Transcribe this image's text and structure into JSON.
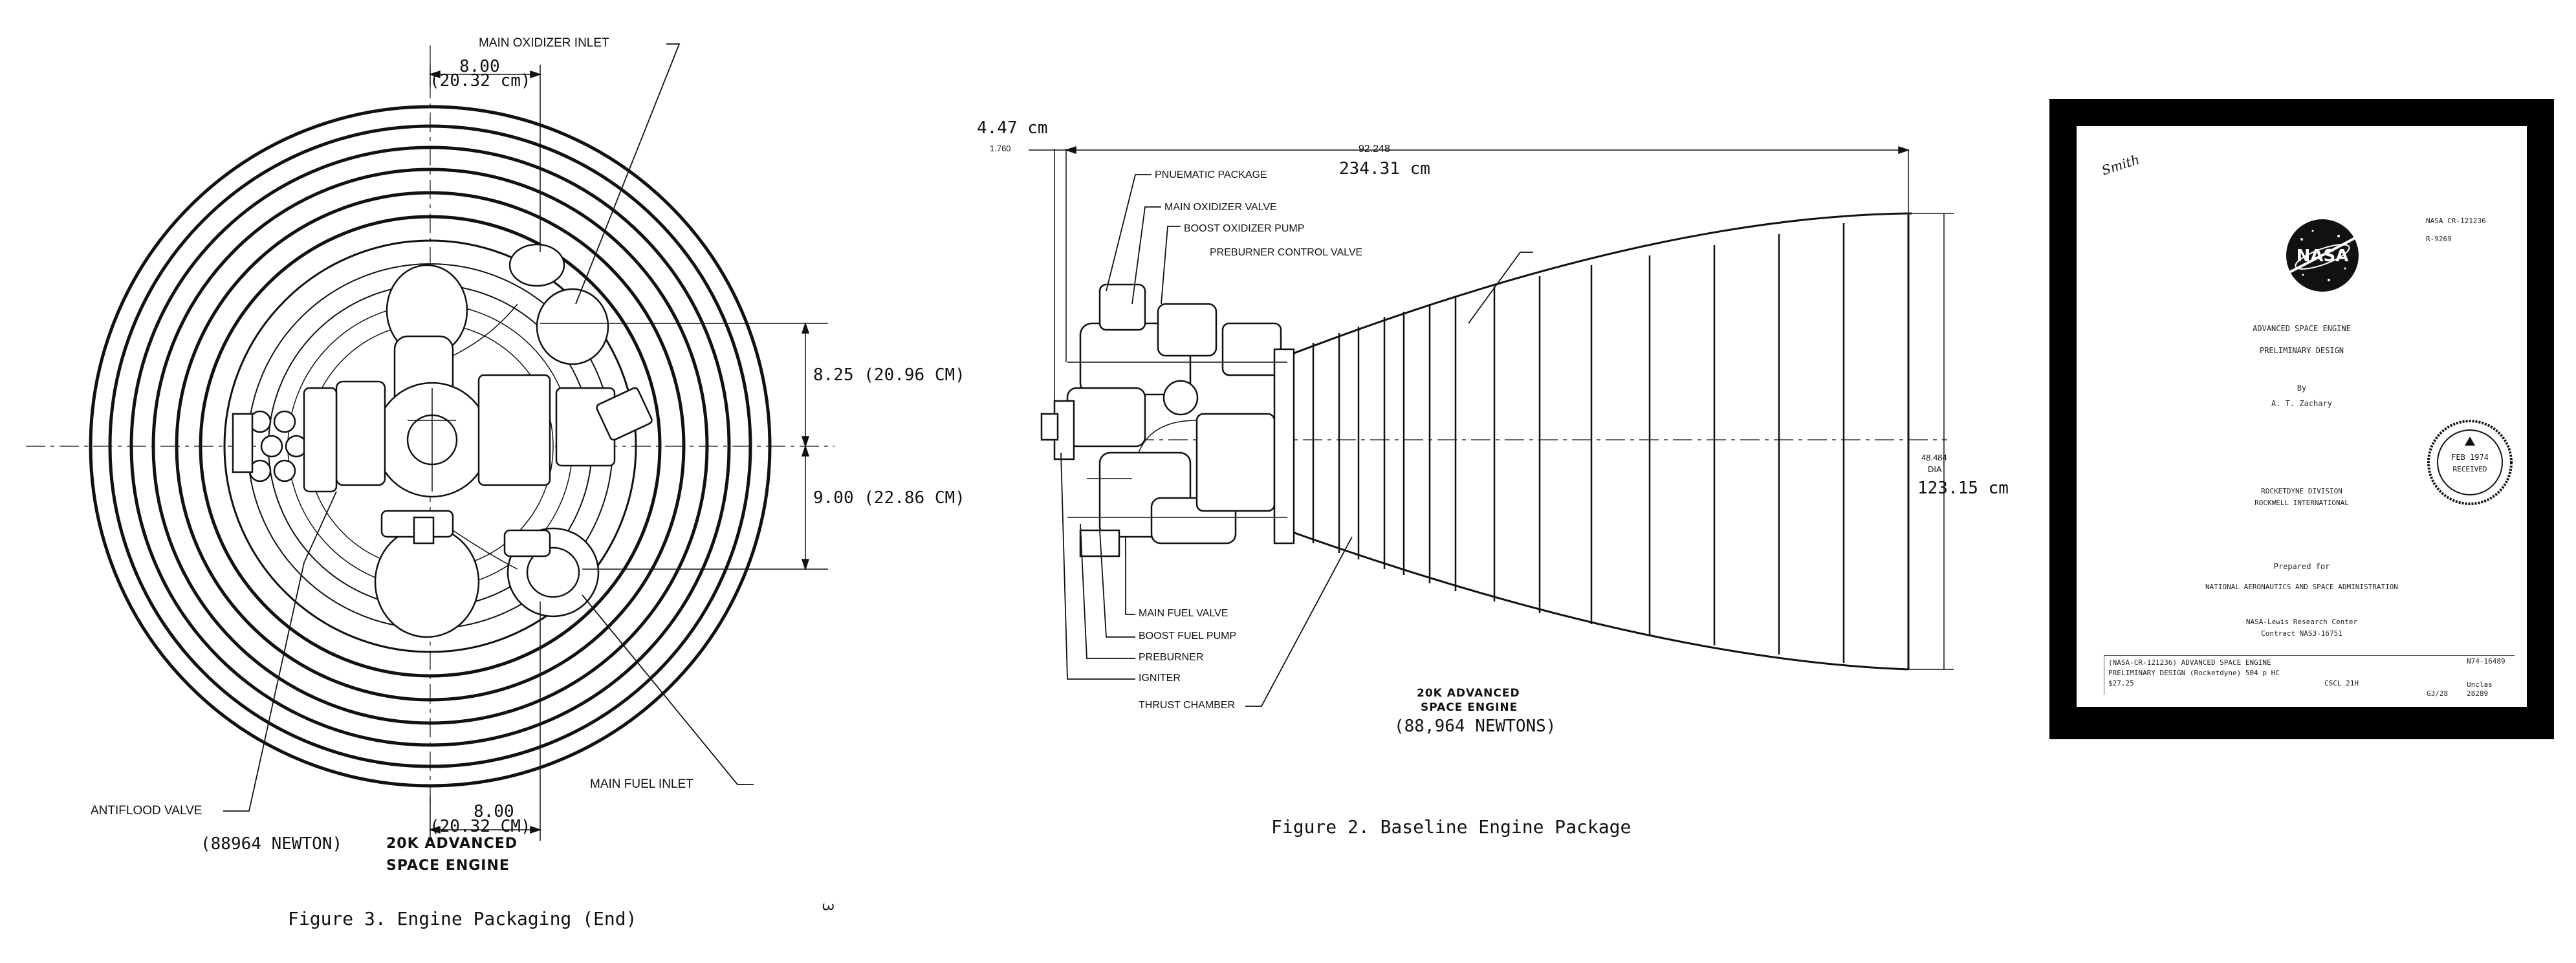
{
  "figure3": {
    "caption": "Figure 3.  Engine Packaging (End)",
    "main_oxidizer_inlet": "MAIN OXIDIZER INLET",
    "top_dim": "8.00",
    "top_dim_cm": "(20.32 cm)",
    "right_dim_upper": "8.25 (20.96 CM)",
    "right_dim_lower": "9.00 (22.86 CM)",
    "bottom_dim": "8.00",
    "bottom_dim_cm": "(20.32 CM)",
    "antiflood_valve": "ANTIFLOOD VALVE",
    "main_fuel_inlet": "MAIN FUEL INLET",
    "engine_newton": "(88964 NEWTON)",
    "engine_name_line1": "20K ADVANCED",
    "engine_name_line2": "SPACE ENGINE",
    "page_number": "3"
  },
  "figure2": {
    "caption": "Figure 2.  Baseline Engine Package",
    "top_left_dim": "4.47 cm",
    "small_dim": "1.760",
    "length_dim_in": "92.248",
    "length_dim_cm": "234.31 cm",
    "exit_dia_in": "48.484",
    "exit_dia_label": "DIA",
    "exit_dia_cm": "123.15 cm",
    "labels_top": [
      "PNUEMATIC PACKAGE",
      "MAIN OXIDIZER VALVE",
      "BOOST OXIDIZER PUMP",
      "PREBURNER CONTROL VALVE"
    ],
    "labels_bottom": [
      "MAIN FUEL VALVE",
      "BOOST FUEL PUMP",
      "PREBURNER",
      "IGNITER",
      "THRUST CHAMBER"
    ],
    "engine_name_line1": "20K ADVANCED",
    "engine_name_line2": "SPACE ENGINE",
    "engine_newtons": "(88,964 NEWTONS)"
  },
  "cover": {
    "handwritten": "Smith",
    "logo_text": "NASA",
    "report_number": "NASA  CR-121236",
    "report_code": "R-9269",
    "title_line1": "ADVANCED SPACE ENGINE",
    "title_line2": "PRELIMINARY DESIGN",
    "by": "By",
    "author": "A. T. Zachary",
    "org_line1": "ROCKETDYNE DIVISION",
    "org_line2": "ROCKWELL INTERNATIONAL",
    "prepared_for": "Prepared for",
    "agency": "NATIONAL AERONAUTICS AND SPACE ADMINISTRATION",
    "center": "NASA-Lewis Research Center",
    "contract": "Contract NAS3-16751",
    "stamp_date": "FEB 1974",
    "stamp_received": "RECEIVED",
    "biblio_line1": "(NASA-CR-121236)  ADVANCED SPACE ENGINE",
    "biblio_line2": "PRELIMINARY DESIGN (Rocketdyne)  504 p HC",
    "biblio_line3": "$27.25",
    "biblio_cscl": "CSCL 21H",
    "biblio_n": "N74-16489",
    "biblio_unclas": "Unclas",
    "biblio_g": "G3/28",
    "biblio_num": "28289"
  }
}
